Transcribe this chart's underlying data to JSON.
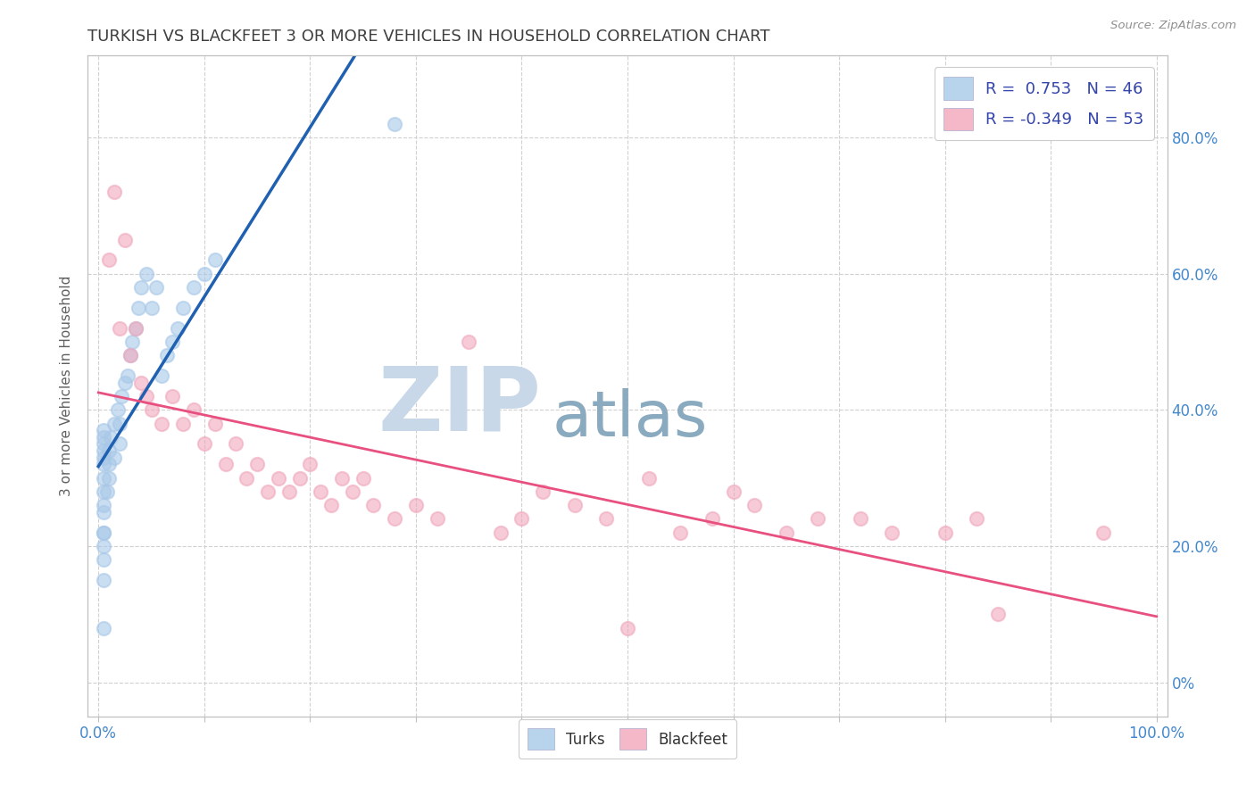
{
  "title": "TURKISH VS BLACKFEET 3 OR MORE VEHICLES IN HOUSEHOLD CORRELATION CHART",
  "source": "Source: ZipAtlas.com",
  "ylabel": "3 or more Vehicles in Household",
  "xlim": [
    -0.01,
    1.01
  ],
  "ylim": [
    -0.05,
    0.92
  ],
  "xtick_positions": [
    0.0,
    0.1,
    0.2,
    0.3,
    0.4,
    0.5,
    0.6,
    0.7,
    0.8,
    0.9,
    1.0
  ],
  "ytick_positions": [
    0.0,
    0.2,
    0.4,
    0.6,
    0.8
  ],
  "yticklabels_right": [
    "0%",
    "20.0%",
    "40.0%",
    "60.0%",
    "80.0%"
  ],
  "r_turks": 0.753,
  "n_turks": 46,
  "r_blackfeet": -0.349,
  "n_blackfeet": 53,
  "turks_color": "#a8c8e8",
  "blackfeet_color": "#f0a8bc",
  "turks_line_color": "#2060b0",
  "blackfeet_line_color": "#e85080",
  "legend_box_turks": "#b8d4ec",
  "legend_box_blackfeet": "#f4b8c8",
  "turks_scatter": [
    [
      0.005,
      0.2
    ],
    [
      0.005,
      0.22
    ],
    [
      0.005,
      0.25
    ],
    [
      0.005,
      0.28
    ],
    [
      0.005,
      0.3
    ],
    [
      0.005,
      0.32
    ],
    [
      0.005,
      0.33
    ],
    [
      0.005,
      0.34
    ],
    [
      0.005,
      0.35
    ],
    [
      0.005,
      0.36
    ],
    [
      0.005,
      0.37
    ],
    [
      0.005,
      0.22
    ],
    [
      0.005,
      0.26
    ],
    [
      0.005,
      0.18
    ],
    [
      0.005,
      0.15
    ],
    [
      0.008,
      0.28
    ],
    [
      0.01,
      0.3
    ],
    [
      0.01,
      0.32
    ],
    [
      0.01,
      0.34
    ],
    [
      0.012,
      0.36
    ],
    [
      0.015,
      0.38
    ],
    [
      0.015,
      0.33
    ],
    [
      0.018,
      0.4
    ],
    [
      0.02,
      0.35
    ],
    [
      0.02,
      0.38
    ],
    [
      0.022,
      0.42
    ],
    [
      0.025,
      0.44
    ],
    [
      0.028,
      0.45
    ],
    [
      0.03,
      0.48
    ],
    [
      0.032,
      0.5
    ],
    [
      0.035,
      0.52
    ],
    [
      0.038,
      0.55
    ],
    [
      0.04,
      0.58
    ],
    [
      0.045,
      0.6
    ],
    [
      0.05,
      0.55
    ],
    [
      0.055,
      0.58
    ],
    [
      0.06,
      0.45
    ],
    [
      0.065,
      0.48
    ],
    [
      0.07,
      0.5
    ],
    [
      0.075,
      0.52
    ],
    [
      0.08,
      0.55
    ],
    [
      0.09,
      0.58
    ],
    [
      0.1,
      0.6
    ],
    [
      0.11,
      0.62
    ],
    [
      0.005,
      0.08
    ],
    [
      0.28,
      0.82
    ]
  ],
  "blackfeet_scatter": [
    [
      0.01,
      0.62
    ],
    [
      0.015,
      0.72
    ],
    [
      0.02,
      0.52
    ],
    [
      0.025,
      0.65
    ],
    [
      0.03,
      0.48
    ],
    [
      0.035,
      0.52
    ],
    [
      0.04,
      0.44
    ],
    [
      0.045,
      0.42
    ],
    [
      0.05,
      0.4
    ],
    [
      0.06,
      0.38
    ],
    [
      0.07,
      0.42
    ],
    [
      0.08,
      0.38
    ],
    [
      0.09,
      0.4
    ],
    [
      0.1,
      0.35
    ],
    [
      0.11,
      0.38
    ],
    [
      0.12,
      0.32
    ],
    [
      0.13,
      0.35
    ],
    [
      0.14,
      0.3
    ],
    [
      0.15,
      0.32
    ],
    [
      0.16,
      0.28
    ],
    [
      0.17,
      0.3
    ],
    [
      0.18,
      0.28
    ],
    [
      0.19,
      0.3
    ],
    [
      0.2,
      0.32
    ],
    [
      0.21,
      0.28
    ],
    [
      0.22,
      0.26
    ],
    [
      0.23,
      0.3
    ],
    [
      0.24,
      0.28
    ],
    [
      0.25,
      0.3
    ],
    [
      0.26,
      0.26
    ],
    [
      0.28,
      0.24
    ],
    [
      0.3,
      0.26
    ],
    [
      0.32,
      0.24
    ],
    [
      0.35,
      0.5
    ],
    [
      0.38,
      0.22
    ],
    [
      0.4,
      0.24
    ],
    [
      0.42,
      0.28
    ],
    [
      0.45,
      0.26
    ],
    [
      0.48,
      0.24
    ],
    [
      0.5,
      0.08
    ],
    [
      0.52,
      0.3
    ],
    [
      0.55,
      0.22
    ],
    [
      0.58,
      0.24
    ],
    [
      0.6,
      0.28
    ],
    [
      0.62,
      0.26
    ],
    [
      0.65,
      0.22
    ],
    [
      0.68,
      0.24
    ],
    [
      0.72,
      0.24
    ],
    [
      0.75,
      0.22
    ],
    [
      0.8,
      0.22
    ],
    [
      0.83,
      0.24
    ],
    [
      0.85,
      0.1
    ],
    [
      0.95,
      0.22
    ]
  ],
  "watermark_zip": "ZIP",
  "watermark_atlas": "atlas",
  "watermark_zip_color": "#c8d8e8",
  "watermark_atlas_color": "#8aaabf",
  "title_color": "#404040",
  "source_color": "#909090",
  "grid_color": "#d0d0d0",
  "axis_color": "#c0c0c0",
  "legend_text_color": "#3344aa",
  "tick_label_color": "#4488cc",
  "background_color": "#ffffff"
}
